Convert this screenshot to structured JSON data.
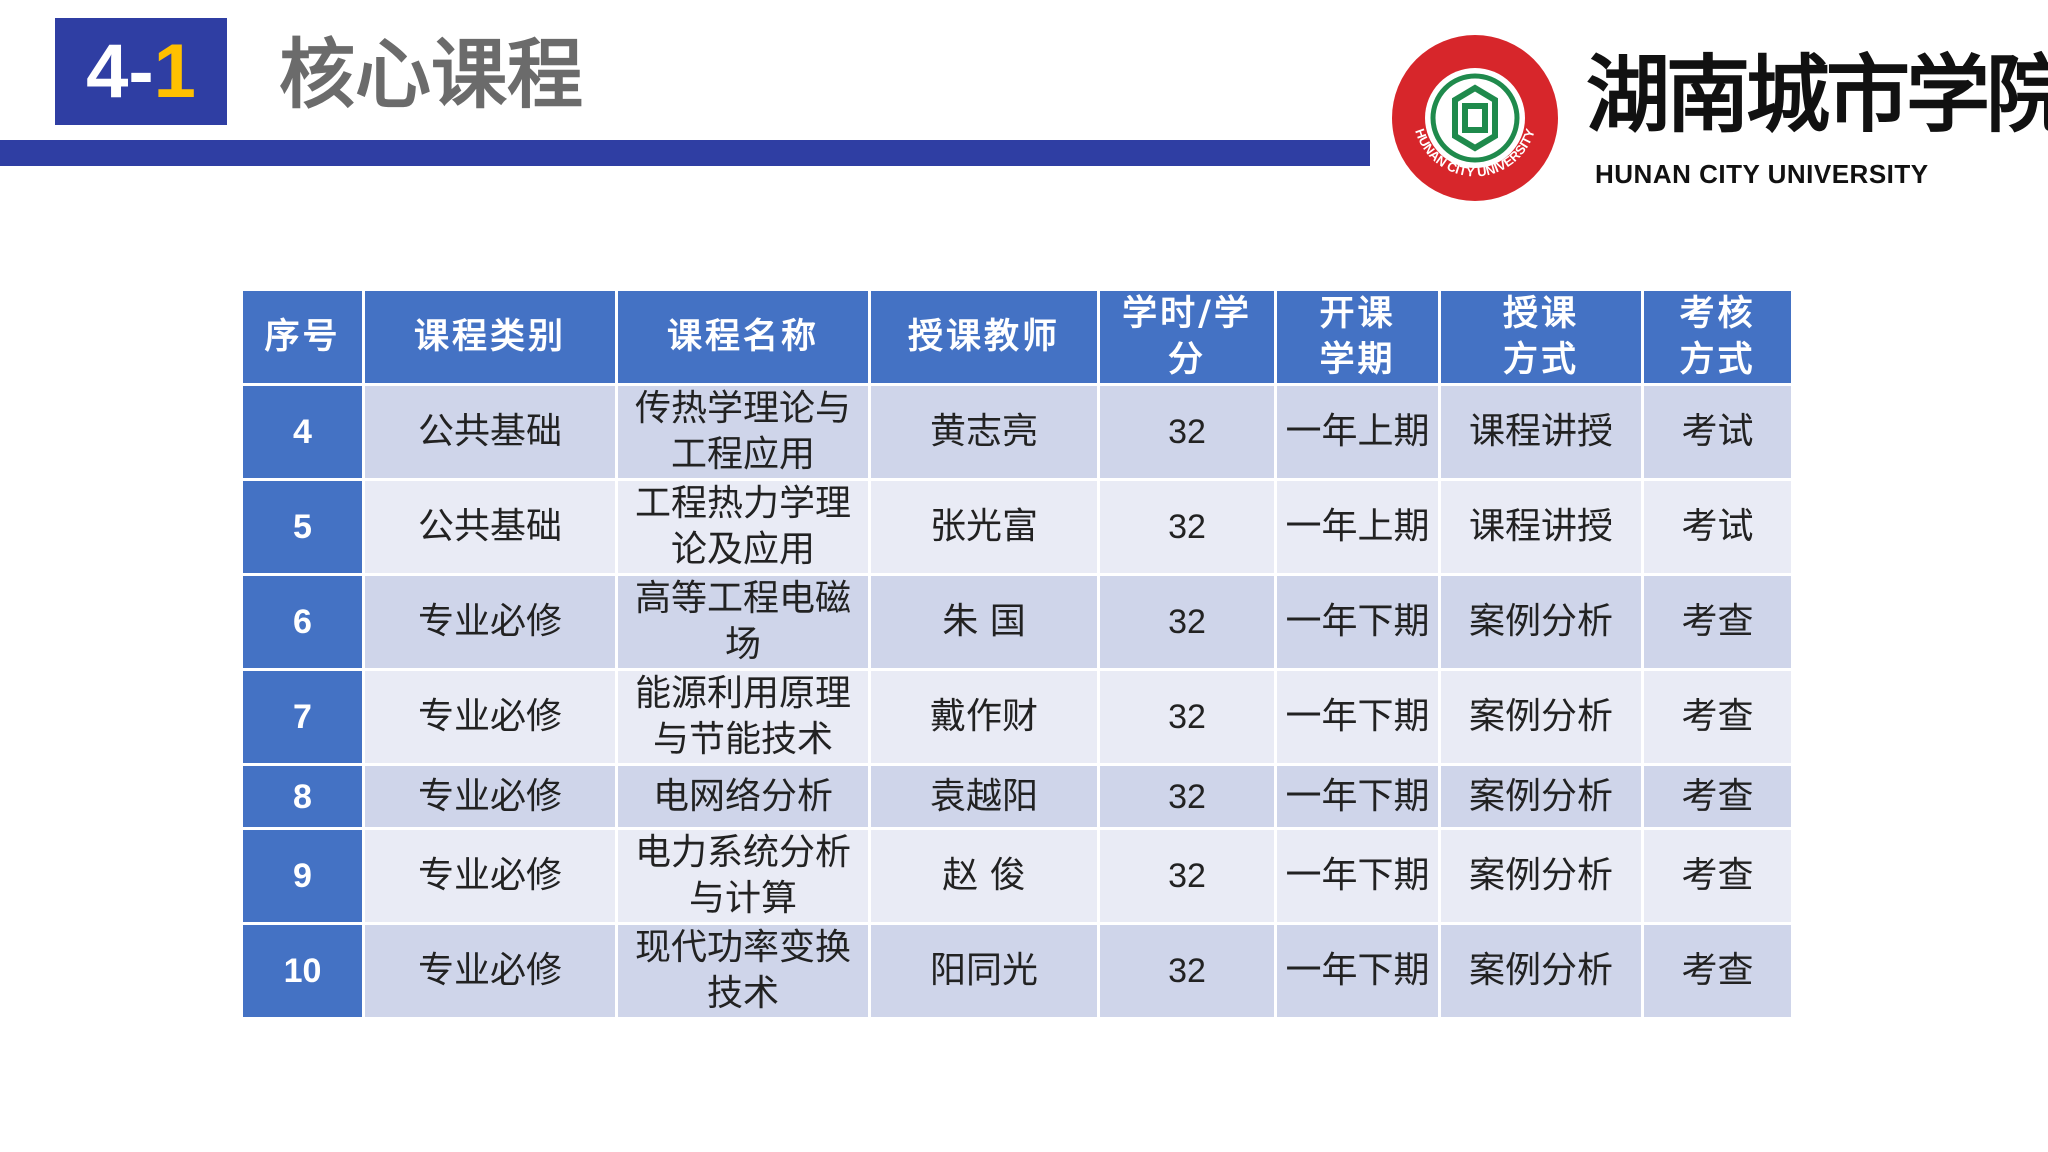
{
  "header": {
    "section_prefix": "4-",
    "section_suffix": "1",
    "title": "核心课程"
  },
  "logo": {
    "name_cn": "湖南城市学院",
    "name_en": "HUNAN CITY UNIVERSITY"
  },
  "table": {
    "headers": [
      [
        "序号"
      ],
      [
        "课程类别"
      ],
      [
        "课程名称"
      ],
      [
        "授课教师"
      ],
      [
        "学时/学分"
      ],
      [
        "开课",
        "学期"
      ],
      [
        "授课",
        "方式"
      ],
      [
        "考核",
        "方式"
      ]
    ],
    "rows": [
      [
        "4",
        "公共基础",
        "传热学理论与工程应用",
        "黄志亮",
        "32",
        "一年上期",
        "课程讲授",
        "考试"
      ],
      [
        "5",
        "公共基础",
        "工程热力学理论及应用",
        "张光富",
        "32",
        "一年上期",
        "课程讲授",
        "考试"
      ],
      [
        "6",
        "专业必修",
        "高等工程电磁场",
        "朱 国",
        "32",
        "一年下期",
        "案例分析",
        "考查"
      ],
      [
        "7",
        "专业必修",
        "能源利用原理与节能技术",
        "戴作财",
        "32",
        "一年下期",
        "案例分析",
        "考查"
      ],
      [
        "8",
        "专业必修",
        "电网络分析",
        "袁越阳",
        "32",
        "一年下期",
        "案例分析",
        "考查"
      ],
      [
        "9",
        "专业必修",
        "电力系统分析与计算",
        "赵 俊",
        "32",
        "一年下期",
        "案例分析",
        "考查"
      ],
      [
        "10",
        "专业必修",
        "现代功率变换技术",
        "阳同光",
        "32",
        "一年下期",
        "案例分析",
        "考查"
      ]
    ]
  }
}
